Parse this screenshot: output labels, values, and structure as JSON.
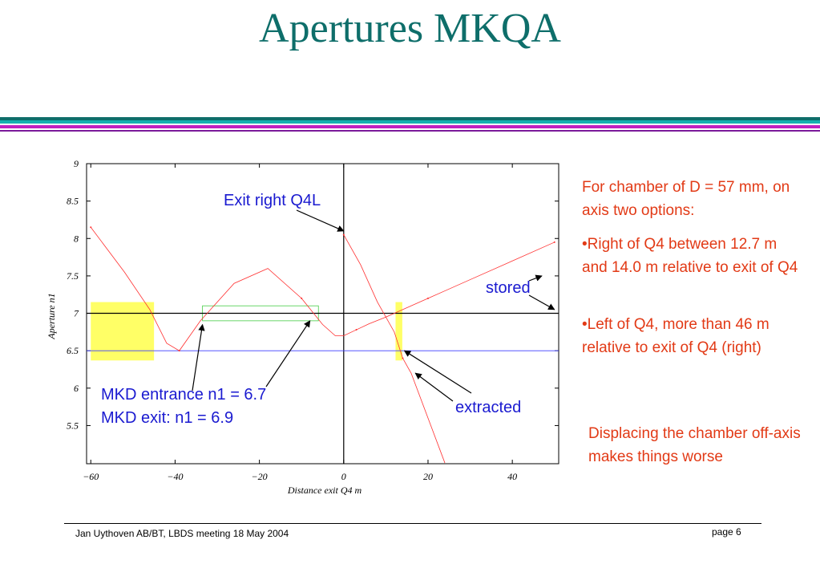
{
  "slide": {
    "title": "Apertures MKQA",
    "footer_left": "Jan Uythoven AB/BT, LBDS meeting 18 May 2004",
    "footer_right": "page   6",
    "accent_colors": [
      "#0e6e6a",
      "#16b0b0",
      "#c020c0",
      "#e23a16",
      "#1a1ad0"
    ]
  },
  "notes": {
    "line1": "For chamber of D = 57 mm, on axis two options:",
    "line2": "•Right of Q4 between 12.7 m and 14.0 m relative to exit of Q4",
    "line3": "•Left of Q4, more than 46 m relative to exit of Q4 (right)",
    "line4": "Displacing the chamber off-axis makes things worse"
  },
  "chart_data": {
    "type": "line",
    "title": "",
    "xlabel": "Distance exit  Q4  m",
    "ylabel": "Aperture n1",
    "xlim": [
      -61,
      51
    ],
    "ylim": [
      4.99,
      9.0
    ],
    "x_ticks": [
      -60,
      -40,
      -20,
      0,
      20,
      40
    ],
    "x_tick_labels": [
      "60",
      "40",
      "20",
      "0",
      "20",
      "40"
    ],
    "y_ticks": [
      5.5,
      6,
      6.5,
      7,
      7.5,
      8,
      8.5,
      9
    ],
    "y_tick_labels": [
      "5.5",
      "6",
      "6.5",
      "7",
      "7.5",
      "8",
      "8.5",
      "9"
    ],
    "reference_lines": [
      {
        "axis": "x",
        "value": 0,
        "color": "#000000"
      },
      {
        "axis": "y",
        "value": 7.0,
        "color": "#000000"
      },
      {
        "axis": "y",
        "value": 6.5,
        "color": "#3c3cff"
      }
    ],
    "series": [
      {
        "color": "#ff3030",
        "x": [
          -60,
          -52,
          -46,
          -42,
          -39,
          -34,
          -26,
          -18,
          -10,
          -5,
          -2,
          0,
          3,
          6,
          10,
          14,
          20,
          24,
          30,
          40,
          50
        ],
        "y": [
          8.15,
          7.55,
          7.05,
          6.6,
          6.5,
          6.9,
          7.4,
          7.6,
          7.2,
          6.85,
          6.7,
          6.7,
          6.78,
          6.86,
          6.95,
          7.05,
          7.2,
          7.3,
          7.45,
          7.7,
          7.95
        ]
      },
      {
        "color": "#ff3030",
        "x": [
          0,
          4,
          8,
          12,
          14,
          16,
          20,
          24
        ],
        "y": [
          8.05,
          7.65,
          7.15,
          6.75,
          6.4,
          6.2,
          5.6,
          5.0
        ]
      }
    ],
    "regions": [
      {
        "color": "#ffff66",
        "x": [
          -60,
          -45
        ],
        "y": [
          6.37,
          7.15
        ]
      },
      {
        "color": "#ffff66",
        "x": [
          12.3,
          13.9
        ],
        "y": [
          6.37,
          7.15
        ]
      },
      {
        "color": "#44cc44",
        "x": [
          -33.5,
          -6
        ],
        "y": [
          6.9,
          7.1
        ]
      }
    ],
    "annotations": [
      {
        "text": "Exit right Q4L",
        "target": [
          0,
          8.1
        ]
      },
      {
        "text": "stored",
        "target": [
          41,
          7.7
        ]
      },
      {
        "text": "extracted",
        "target": [
          17,
          6.2
        ]
      },
      {
        "text": "MKD entrance n1 = 6.7",
        "target": [
          -33.5,
          6.85
        ]
      },
      {
        "text": "MKD exit: n1 = 6.9",
        "target": [
          -8,
          6.9
        ]
      }
    ]
  }
}
